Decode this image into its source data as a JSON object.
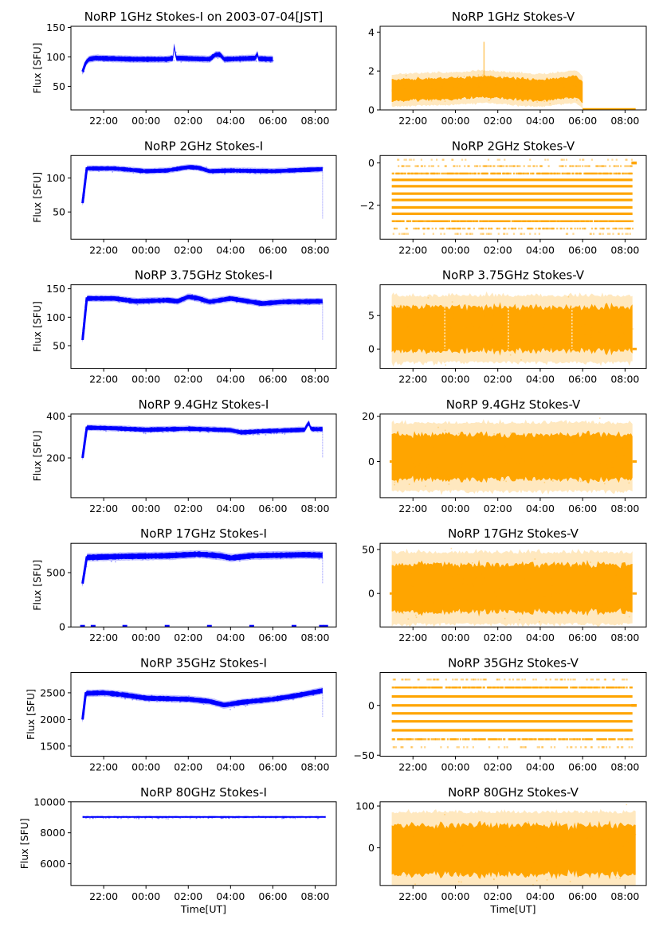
{
  "figure": {
    "colors": {
      "stokes_i": "#0000ff",
      "stokes_v": "#ffa500"
    },
    "xlabel_bottom": "Time[UT]"
  },
  "chart_data": [
    {
      "type": "scatter",
      "title": "NoRP 1GHz Stokes-I on 2003-07-04[JST]",
      "xlabel": "",
      "ylabel": "Flux [SFU]",
      "xticks": [
        "22:00",
        "00:00",
        "02:00",
        "04:00",
        "06:00",
        "08:00"
      ],
      "xlim_hours": [
        20.45,
        33.0
      ],
      "ylim": [
        10,
        152
      ],
      "yticks": [
        50,
        100,
        150
      ],
      "series": [
        {
          "name": "Stokes-I",
          "color": "#0000ff",
          "x_start": 21.0,
          "x_end": 30.0,
          "profile": [
            [
              21.0,
              75
            ],
            [
              21.15,
              90
            ],
            [
              21.3,
              96
            ],
            [
              21.6,
              98
            ],
            [
              22.5,
              97
            ],
            [
              23.5,
              96
            ],
            [
              25.0,
              96
            ],
            [
              25.3,
              98
            ],
            [
              25.35,
              130
            ],
            [
              25.4,
              98
            ],
            [
              27.0,
              96
            ],
            [
              27.3,
              104
            ],
            [
              27.5,
              104
            ],
            [
              27.7,
              96
            ],
            [
              29.2,
              98
            ],
            [
              29.25,
              110
            ],
            [
              29.3,
              97
            ],
            [
              30.0,
              96
            ]
          ],
          "spread": 4
        }
      ]
    },
    {
      "type": "scatter",
      "title": "NoRP 1GHz Stokes-V",
      "xlabel": "",
      "ylabel": "",
      "xticks": [
        "22:00",
        "00:00",
        "02:00",
        "04:00",
        "06:00",
        "08:00"
      ],
      "xlim_hours": [
        20.45,
        33.0
      ],
      "ylim": [
        0,
        4.3
      ],
      "yticks": [
        0,
        2,
        4
      ],
      "series": [
        {
          "name": "Stokes-V",
          "color": "#ffa500",
          "x_start": 21.0,
          "x_end": 30.0,
          "profile": [
            [
              21.0,
              1.0
            ],
            [
              22.0,
              1.05
            ],
            [
              24.0,
              1.1
            ],
            [
              25.35,
              1.2
            ],
            [
              26.0,
              1.15
            ],
            [
              28.0,
              1.0
            ],
            [
              29.7,
              1.2
            ],
            [
              30.0,
              0.9
            ]
          ],
          "spread": 0.55,
          "tail_after": [
            30.0,
            32.5,
            0.03
          ],
          "spike": [
            25.35,
            3.5
          ]
        }
      ]
    },
    {
      "type": "scatter",
      "title": "NoRP 2GHz Stokes-I",
      "xlabel": "",
      "ylabel": "Flux [SFU]",
      "xticks": [
        "22:00",
        "00:00",
        "02:00",
        "04:00",
        "06:00",
        "08:00"
      ],
      "xlim_hours": [
        20.45,
        33.0
      ],
      "ylim": [
        10,
        133
      ],
      "yticks": [
        50,
        100
      ],
      "series": [
        {
          "name": "Stokes-I",
          "color": "#0000ff",
          "x_start": 21.0,
          "x_end": 32.35,
          "profile": [
            [
              21.0,
              63
            ],
            [
              21.2,
              114
            ],
            [
              22.5,
              114
            ],
            [
              24.0,
              110
            ],
            [
              25.0,
              111
            ],
            [
              26.0,
              116
            ],
            [
              26.5,
              115
            ],
            [
              27.0,
              110
            ],
            [
              28.0,
              111
            ],
            [
              30.0,
              110
            ],
            [
              32.35,
              113
            ]
          ],
          "spread": 3,
          "dropout": [
            32.35,
            40
          ]
        }
      ]
    },
    {
      "type": "scatter",
      "title": "NoRP 2GHz Stokes-V",
      "xlabel": "",
      "ylabel": "",
      "xticks": [
        "22:00",
        "00:00",
        "02:00",
        "04:00",
        "06:00",
        "08:00"
      ],
      "xlim_hours": [
        20.45,
        33.0
      ],
      "ylim": [
        -3.6,
        0.35
      ],
      "yticks": [
        -2,
        0
      ],
      "series": [
        {
          "name": "Stokes-V",
          "color": "#ffa500",
          "x_start": 21.0,
          "x_end": 32.35,
          "levels": [
            0.15,
            -0.15,
            -0.5,
            -0.8,
            -1.1,
            -1.45,
            -1.75,
            -2.1,
            -2.4,
            -2.75,
            -3.1,
            -3.35
          ],
          "level_strength": [
            0.15,
            0.35,
            0.7,
            1,
            1,
            1,
            1,
            1,
            1,
            0.85,
            0.45,
            0.2
          ]
        }
      ]
    },
    {
      "type": "scatter",
      "title": "NoRP 3.75GHz Stokes-I",
      "xlabel": "",
      "ylabel": "Flux [SFU]",
      "xticks": [
        "22:00",
        "00:00",
        "02:00",
        "04:00",
        "06:00",
        "08:00"
      ],
      "xlim_hours": [
        20.45,
        33.0
      ],
      "ylim": [
        10,
        157
      ],
      "yticks": [
        50,
        100,
        150
      ],
      "series": [
        {
          "name": "Stokes-I",
          "color": "#0000ff",
          "x_start": 21.0,
          "x_end": 32.35,
          "profile": [
            [
              21.0,
              60
            ],
            [
              21.2,
              133
            ],
            [
              22.5,
              133
            ],
            [
              23.5,
              128
            ],
            [
              25.0,
              130
            ],
            [
              25.5,
              128
            ],
            [
              26.0,
              136
            ],
            [
              26.5,
              133
            ],
            [
              27.0,
              127
            ],
            [
              28.0,
              133
            ],
            [
              28.5,
              130
            ],
            [
              29.5,
              124
            ],
            [
              30.5,
              127
            ],
            [
              32.35,
              128
            ]
          ],
          "spread": 4,
          "dropout": [
            32.35,
            60
          ]
        }
      ]
    },
    {
      "type": "scatter",
      "title": "NoRP 3.75GHz Stokes-V",
      "xlabel": "",
      "ylabel": "",
      "xticks": [
        "22:00",
        "00:00",
        "02:00",
        "04:00",
        "06:00",
        "08:00"
      ],
      "xlim_hours": [
        20.45,
        33.0
      ],
      "ylim": [
        -2.9,
        9.6
      ],
      "yticks": [
        0,
        5
      ],
      "series": [
        {
          "name": "Stokes-V",
          "color": "#ffa500",
          "x_start": 21.0,
          "x_end": 32.35,
          "profile": [
            [
              21.0,
              3.0
            ],
            [
              32.35,
              3.0
            ]
          ],
          "spread": 3.3,
          "tail_after": [
            32.35,
            32.55,
            0
          ],
          "gaps": [
            23.5,
            26.5,
            29.5
          ]
        }
      ]
    },
    {
      "type": "scatter",
      "title": "NoRP 9.4GHz Stokes-I",
      "xlabel": "",
      "ylabel": "Flux [SFU]",
      "xticks": [
        "22:00",
        "00:00",
        "02:00",
        "04:00",
        "06:00",
        "08:00"
      ],
      "xlim_hours": [
        20.45,
        33.0
      ],
      "ylim": [
        10,
        410
      ],
      "yticks": [
        200,
        400
      ],
      "series": [
        {
          "name": "Stokes-I",
          "color": "#0000ff",
          "x_start": 21.0,
          "x_end": 32.35,
          "profile": [
            [
              21.0,
              200
            ],
            [
              21.2,
              345
            ],
            [
              22.5,
              342
            ],
            [
              24.0,
              335
            ],
            [
              26.0,
              340
            ],
            [
              28.0,
              333
            ],
            [
              28.5,
              322
            ],
            [
              29.5,
              328
            ],
            [
              31.5,
              335
            ],
            [
              31.7,
              370
            ],
            [
              31.8,
              338
            ],
            [
              32.35,
              338
            ]
          ],
          "spread": 10,
          "dropout": [
            32.35,
            200
          ]
        }
      ]
    },
    {
      "type": "scatter",
      "title": "NoRP 9.4GHz Stokes-V",
      "xlabel": "",
      "ylabel": "",
      "xticks": [
        "22:00",
        "00:00",
        "02:00",
        "04:00",
        "06:00",
        "08:00"
      ],
      "xlim_hours": [
        20.45,
        33.0
      ],
      "ylim": [
        -16,
        21
      ],
      "yticks": [
        0,
        20
      ],
      "series": [
        {
          "name": "Stokes-V",
          "color": "#ffa500",
          "x_start": 21.0,
          "x_end": 32.35,
          "profile": [
            [
              21.0,
              2
            ],
            [
              32.35,
              2
            ]
          ],
          "spread": 10,
          "tail_after": [
            32.35,
            32.55,
            0
          ],
          "tail_before": [
            20.9,
            21.0,
            0
          ]
        }
      ]
    },
    {
      "type": "scatter",
      "title": "NoRP 17GHz Stokes-I",
      "xlabel": "",
      "ylabel": "Flux [SFU]",
      "xticks": [
        "22:00",
        "00:00",
        "02:00",
        "04:00",
        "06:00",
        "08:00"
      ],
      "xlim_hours": [
        20.45,
        33.0
      ],
      "ylim": [
        0,
        770
      ],
      "yticks": [
        0,
        500
      ],
      "series": [
        {
          "name": "Stokes-I",
          "color": "#0000ff",
          "x_start": 21.0,
          "x_end": 32.35,
          "profile": [
            [
              21.0,
              400
            ],
            [
              21.2,
              640
            ],
            [
              23.0,
              650
            ],
            [
              25.0,
              655
            ],
            [
              26.5,
              670
            ],
            [
              27.5,
              655
            ],
            [
              28.0,
              635
            ],
            [
              29.0,
              655
            ],
            [
              31.5,
              665
            ],
            [
              32.35,
              660
            ]
          ],
          "spread": 25,
          "dropout": [
            32.35,
            400
          ],
          "zeros": [
            21.0,
            21.5,
            23.0,
            25.0,
            27.0,
            29.0,
            31.0,
            32.3,
            32.5
          ]
        }
      ]
    },
    {
      "type": "scatter",
      "title": "NoRP 17GHz Stokes-V",
      "xlabel": "",
      "ylabel": "",
      "xticks": [
        "22:00",
        "00:00",
        "02:00",
        "04:00",
        "06:00",
        "08:00"
      ],
      "xlim_hours": [
        20.45,
        33.0
      ],
      "ylim": [
        -38,
        57
      ],
      "yticks": [
        0,
        50
      ],
      "series": [
        {
          "name": "Stokes-V",
          "color": "#ffa500",
          "x_start": 21.0,
          "x_end": 32.35,
          "profile": [
            [
              21.0,
              6
            ],
            [
              32.35,
              6
            ]
          ],
          "spread": 27,
          "tail_after": [
            32.35,
            32.55,
            0
          ],
          "tail_before": [
            20.9,
            21.0,
            0
          ]
        }
      ]
    },
    {
      "type": "scatter",
      "title": "NoRP 35GHz Stokes-I",
      "xlabel": "",
      "ylabel": "Flux [SFU]",
      "xticks": [
        "22:00",
        "00:00",
        "02:00",
        "04:00",
        "06:00",
        "08:00"
      ],
      "xlim_hours": [
        20.45,
        33.0
      ],
      "ylim": [
        1310,
        2880
      ],
      "yticks": [
        1500,
        2000,
        2500
      ],
      "series": [
        {
          "name": "Stokes-I",
          "color": "#0000ff",
          "x_start": 21.0,
          "x_end": 32.35,
          "profile": [
            [
              21.0,
              2000
            ],
            [
              21.15,
              2490
            ],
            [
              22.0,
              2500
            ],
            [
              23.0,
              2460
            ],
            [
              24.0,
              2400
            ],
            [
              26.0,
              2380
            ],
            [
              27.0,
              2340
            ],
            [
              27.7,
              2270
            ],
            [
              28.5,
              2320
            ],
            [
              30.0,
              2380
            ],
            [
              31.0,
              2440
            ],
            [
              32.35,
              2540
            ]
          ],
          "spread": 45,
          "dropout": [
            32.35,
            2050
          ]
        }
      ]
    },
    {
      "type": "scatter",
      "title": "NoRP 35GHz Stokes-V",
      "xlabel": "",
      "ylabel": "",
      "xticks": [
        "22:00",
        "00:00",
        "02:00",
        "04:00",
        "06:00",
        "08:00"
      ],
      "xlim_hours": [
        20.45,
        33.0
      ],
      "ylim": [
        -51,
        33
      ],
      "yticks": [
        -50,
        0
      ],
      "series": [
        {
          "name": "Stokes-V",
          "color": "#ffa500",
          "x_start": 21.0,
          "x_end": 32.35,
          "levels": [
            26,
            18,
            9,
            0,
            -8,
            -16,
            -25,
            -34,
            -42
          ],
          "level_strength": [
            0.25,
            0.8,
            1,
            1,
            1,
            1,
            1,
            0.7,
            0.2
          ]
        }
      ]
    },
    {
      "type": "scatter",
      "title": "NoRP 80GHz Stokes-I",
      "xlabel": "Time[UT]",
      "ylabel": "Flux [SFU]",
      "xticks": [
        "22:00",
        "00:00",
        "02:00",
        "04:00",
        "06:00",
        "08:00"
      ],
      "xlim_hours": [
        20.45,
        33.0
      ],
      "ylim": [
        4600,
        10000
      ],
      "yticks": [
        6000,
        8000,
        10000
      ],
      "series": [
        {
          "name": "Stokes-I",
          "color": "#0000ff",
          "x_start": 21.0,
          "x_end": 32.5,
          "profile": [
            [
              21.0,
              9020
            ],
            [
              32.5,
              9020
            ]
          ],
          "spread": 50
        }
      ]
    },
    {
      "type": "scatter",
      "title": "NoRP 80GHz Stokes-V",
      "xlabel": "Time[UT]",
      "ylabel": "",
      "xticks": [
        "22:00",
        "00:00",
        "02:00",
        "04:00",
        "06:00",
        "08:00"
      ],
      "xlim_hours": [
        20.45,
        33.0
      ],
      "ylim": [
        -90,
        110
      ],
      "yticks": [
        0,
        100
      ],
      "series": [
        {
          "name": "Stokes-V",
          "color": "#ffa500",
          "x_start": 21.0,
          "x_end": 32.5,
          "profile": [
            [
              21.0,
              -5
            ],
            [
              32.5,
              -5
            ]
          ],
          "spread": 60
        }
      ]
    }
  ]
}
